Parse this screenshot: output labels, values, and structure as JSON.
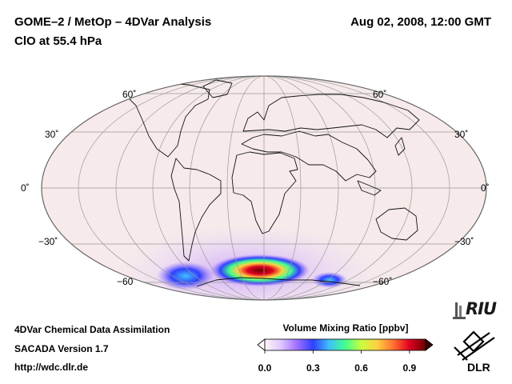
{
  "header": {
    "title": "GOME–2 / MetOp – 4DVar Analysis",
    "subtitle": "ClO at 55.4 hPa",
    "datetime": "Aug 02, 2008, 12:00 GMT"
  },
  "map": {
    "projection": "Hammer-Aitoff",
    "latitude_labels": {
      "left": [
        "60˚",
        "30˚",
        "0˚",
        "−30˚",
        "−60"
      ],
      "right": [
        "60˚",
        "30˚",
        "0˚",
        "−30˚",
        "−60˚"
      ]
    }
  },
  "colorbar": {
    "title": "Volume Mixing Ratio [ppbv]",
    "min": 0.0,
    "max": 1.0,
    "ticks": [
      "0.0",
      "0.3",
      "0.6",
      "0.9"
    ],
    "colors": [
      "#fff4f4",
      "#e0c8ff",
      "#a070ff",
      "#3040ff",
      "#40c0ff",
      "#40ff90",
      "#c8ff40",
      "#ffd040",
      "#ff7030",
      "#e00020",
      "#700000"
    ]
  },
  "footer": {
    "line1": "4DVar Chemical Data Assimilation",
    "line2": "SACADA Version 1.7",
    "line3": "http://wdc.dlr.de"
  },
  "logos": {
    "riu": "RIU",
    "dlr": "DLR"
  }
}
